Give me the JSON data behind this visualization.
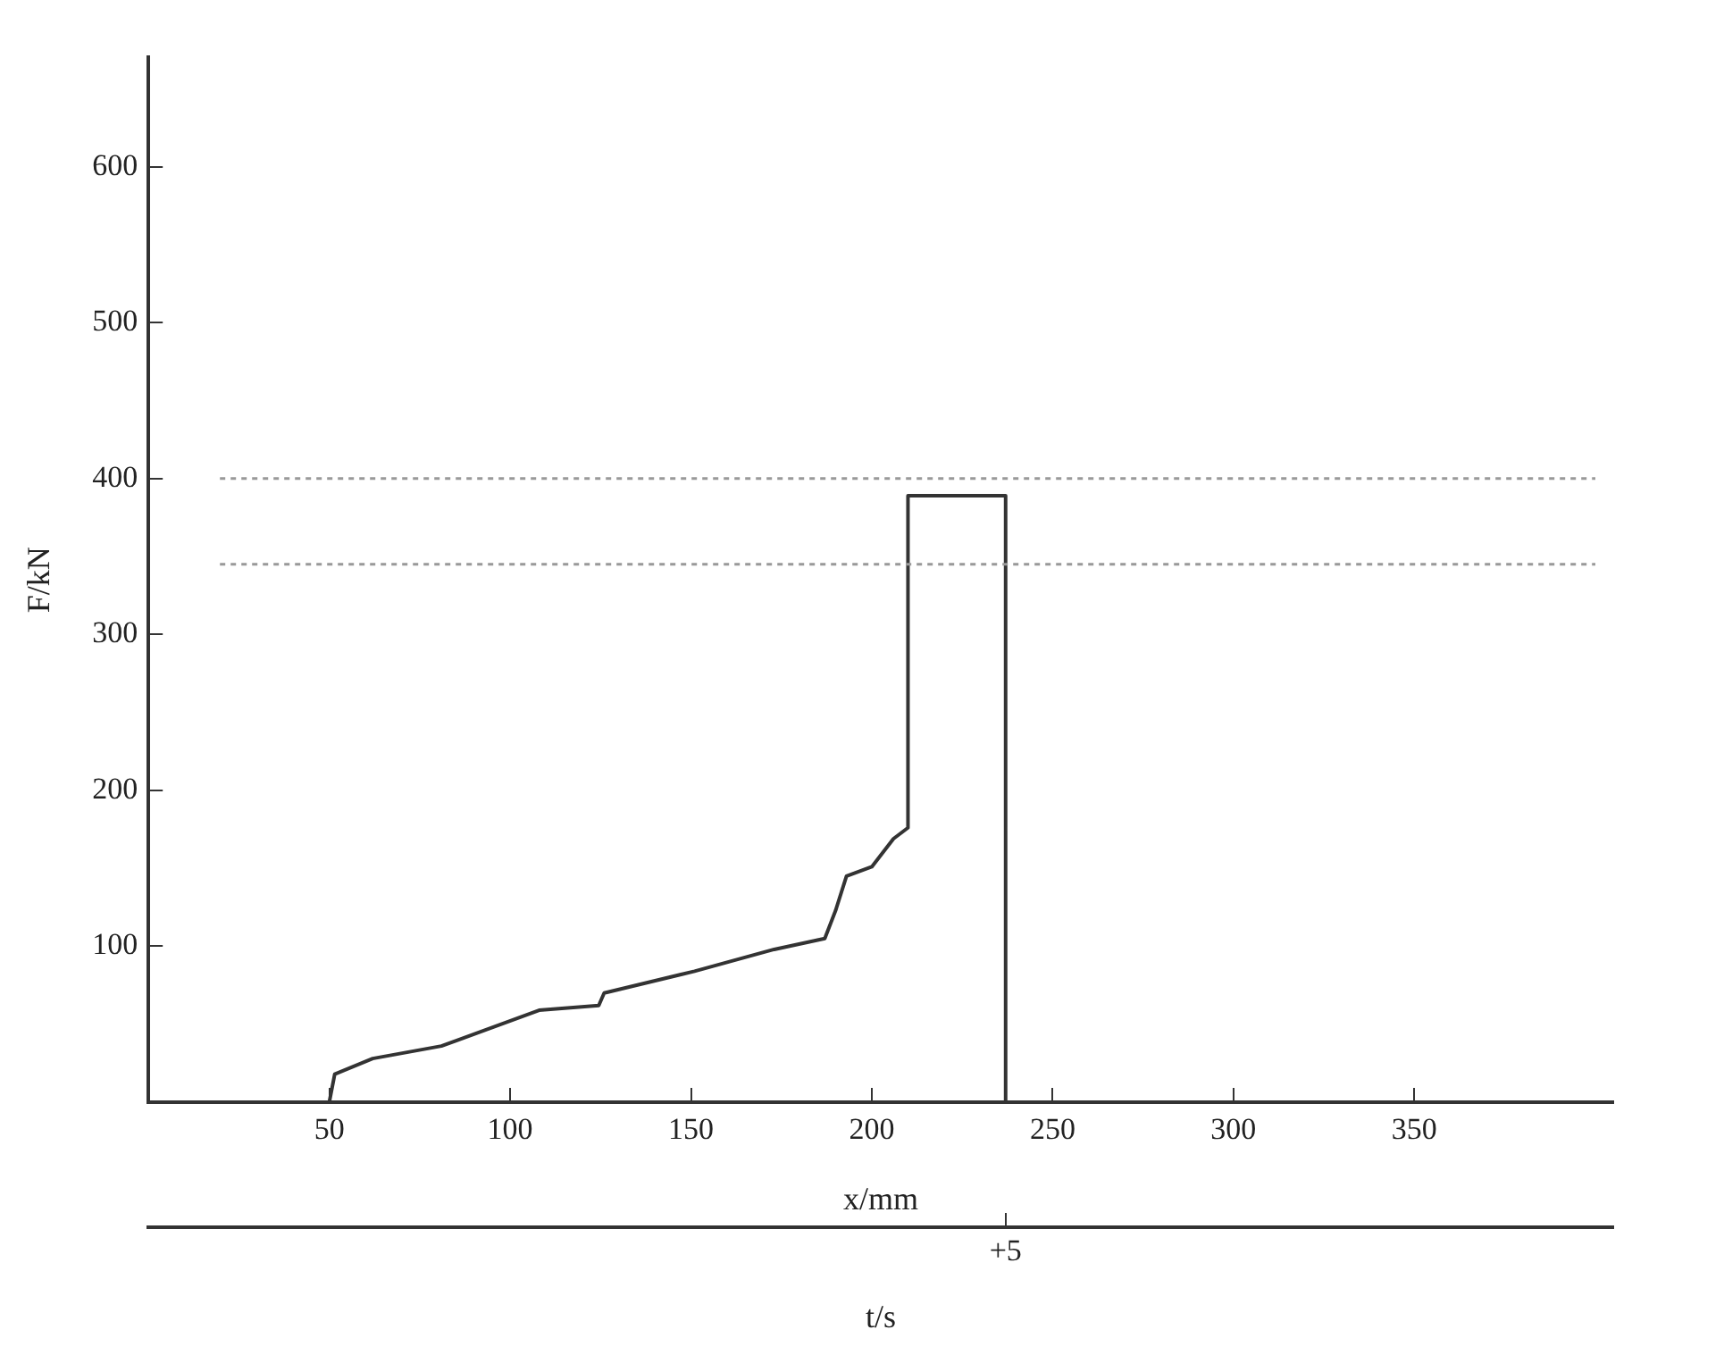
{
  "chart_data": {
    "type": "line",
    "xlabel": "x/mm",
    "ylabel": "F/kN",
    "x2label": "t/s",
    "xlim": [
      0,
      405
    ],
    "xticks": [
      50,
      100,
      150,
      200,
      250,
      300,
      350
    ],
    "ylim": [
      0,
      670
    ],
    "yticks": [
      100,
      200,
      300,
      400,
      500,
      600
    ],
    "annotations": [
      {
        "text": "+5",
        "x": 237
      }
    ],
    "series": [
      {
        "color": "#333333",
        "x": [
          0,
          50,
          51.5,
          62,
          81,
          108,
          124.5,
          126,
          151,
          173,
          187,
          190,
          193,
          200,
          206,
          210,
          210,
          237,
          237,
          405
        ],
        "values": [
          0,
          0,
          18,
          28,
          36,
          59,
          62,
          70,
          84,
          98,
          105,
          123,
          145,
          151,
          169,
          176,
          389,
          389,
          0,
          0
        ]
      }
    ],
    "ref_lines": [
      {
        "axis": "y",
        "value": 400,
        "color": "#999999",
        "line_style": "dotted"
      },
      {
        "axis": "y",
        "value": 345,
        "color": "#999999",
        "line_style": "dotted"
      }
    ],
    "grid": false,
    "legend": false,
    "marker": "none",
    "line_style": "solid"
  }
}
